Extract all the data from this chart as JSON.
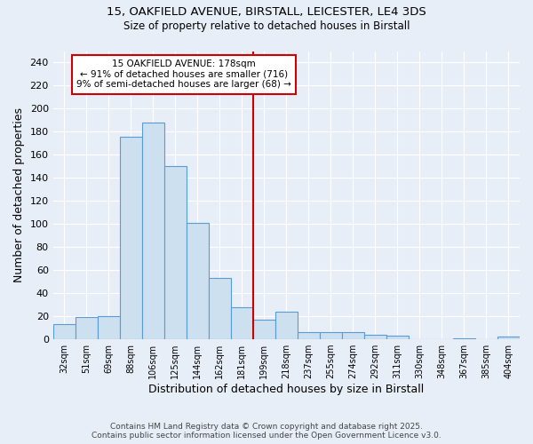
{
  "title_line1": "15, OAKFIELD AVENUE, BIRSTALL, LEICESTER, LE4 3DS",
  "title_line2": "Size of property relative to detached houses in Birstall",
  "categories": [
    "32sqm",
    "51sqm",
    "69sqm",
    "88sqm",
    "106sqm",
    "125sqm",
    "144sqm",
    "162sqm",
    "181sqm",
    "199sqm",
    "218sqm",
    "237sqm",
    "255sqm",
    "274sqm",
    "292sqm",
    "311sqm",
    "330sqm",
    "348sqm",
    "367sqm",
    "385sqm",
    "404sqm"
  ],
  "values": [
    13,
    19,
    20,
    176,
    188,
    150,
    101,
    53,
    28,
    17,
    24,
    6,
    6,
    6,
    4,
    3,
    0,
    0,
    1,
    0,
    2
  ],
  "bar_color": "#cce0f0",
  "bar_edge_color": "#5b9bd5",
  "redline_index": 8,
  "annotation_text_line1": "15 OAKFIELD AVENUE: 178sqm",
  "annotation_text_line2": "← 91% of detached houses are smaller (716)",
  "annotation_text_line3": "9% of semi-detached houses are larger (68) →",
  "xlabel": "Distribution of detached houses by size in Birstall",
  "ylabel": "Number of detached properties",
  "ylim": [
    0,
    250
  ],
  "yticks": [
    0,
    20,
    40,
    60,
    80,
    100,
    120,
    140,
    160,
    180,
    200,
    220,
    240
  ],
  "footer_line1": "Contains HM Land Registry data © Crown copyright and database right 2025.",
  "footer_line2": "Contains public sector information licensed under the Open Government Licence v3.0.",
  "bg_color": "#e8eef8",
  "grid_color": "#ffffff",
  "annotation_box_color": "#ffffff",
  "annotation_box_edge": "#cc0000",
  "title_fontsize": 9.5,
  "subtitle_fontsize": 8.5
}
